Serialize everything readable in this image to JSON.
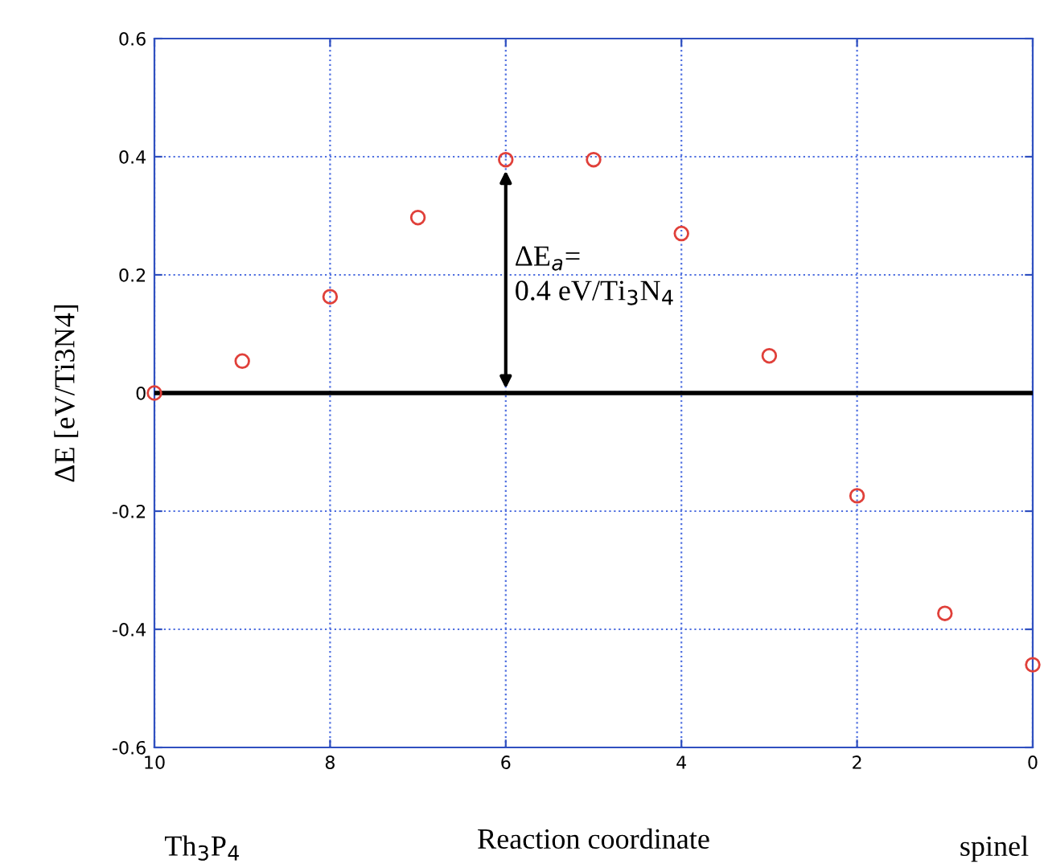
{
  "chart_data": {
    "type": "scatter",
    "ylabel": "ΔE [eV/Ti3N4]",
    "xlabel": "Reaction coordinate",
    "x": [
      10,
      9,
      8,
      7,
      6,
      5,
      4,
      3,
      2,
      1,
      0
    ],
    "series": [
      {
        "color": "#e0403a",
        "values": [
          0.0,
          0.054,
          0.163,
          0.297,
          0.395,
          0.395,
          0.27,
          0.063,
          -0.174,
          -0.373,
          -0.46
        ]
      }
    ],
    "marker": "circle",
    "xlim": [
      10,
      0
    ],
    "ylim": [
      -0.6,
      0.6
    ],
    "xticks": [
      10,
      8,
      6,
      4,
      2,
      0
    ],
    "yticks": [
      -0.6,
      -0.4,
      -0.2,
      0,
      0.2,
      0.4,
      0.6
    ],
    "grid": true,
    "legend": false,
    "ref_lines": [
      {
        "axis": "y",
        "value": 0,
        "color": "#000000",
        "line_style": "solid"
      }
    ],
    "annotations": [
      "ΔE$_{a}$=\n0.4 eV/Ti$_{3}$N$_{4}$",
      "Th$_{3}$P$_{4}$",
      "spinel"
    ]
  }
}
